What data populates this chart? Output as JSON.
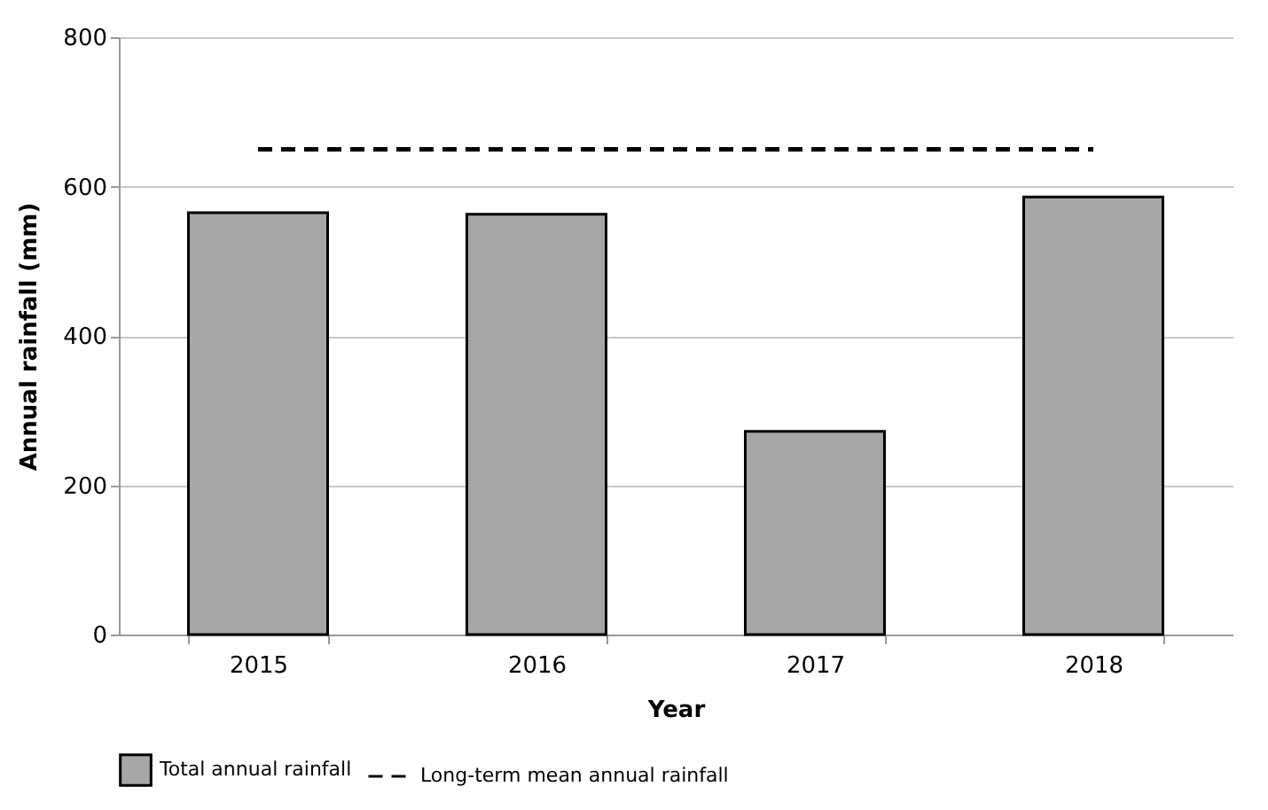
{
  "chart_data": {
    "type": "bar",
    "xlabel": "Year",
    "ylabel": "Annual rainfall (mm)",
    "categories": [
      "2015",
      "2016",
      "2017",
      "2018"
    ],
    "series": [
      {
        "name": "Total annual rainfall",
        "color": "#a6a6a6",
        "values": [
          565,
          563,
          272,
          586
        ]
      },
      {
        "name": "Long-term mean annual rainfall",
        "type": "line",
        "color": "#000000",
        "line_style": "dashed",
        "values": [
          650,
          650,
          650,
          650
        ]
      }
    ],
    "ylim": [
      0,
      800
    ],
    "yticks": [
      0,
      200,
      400,
      600,
      800
    ],
    "grid": "y",
    "legend": "bottom"
  }
}
